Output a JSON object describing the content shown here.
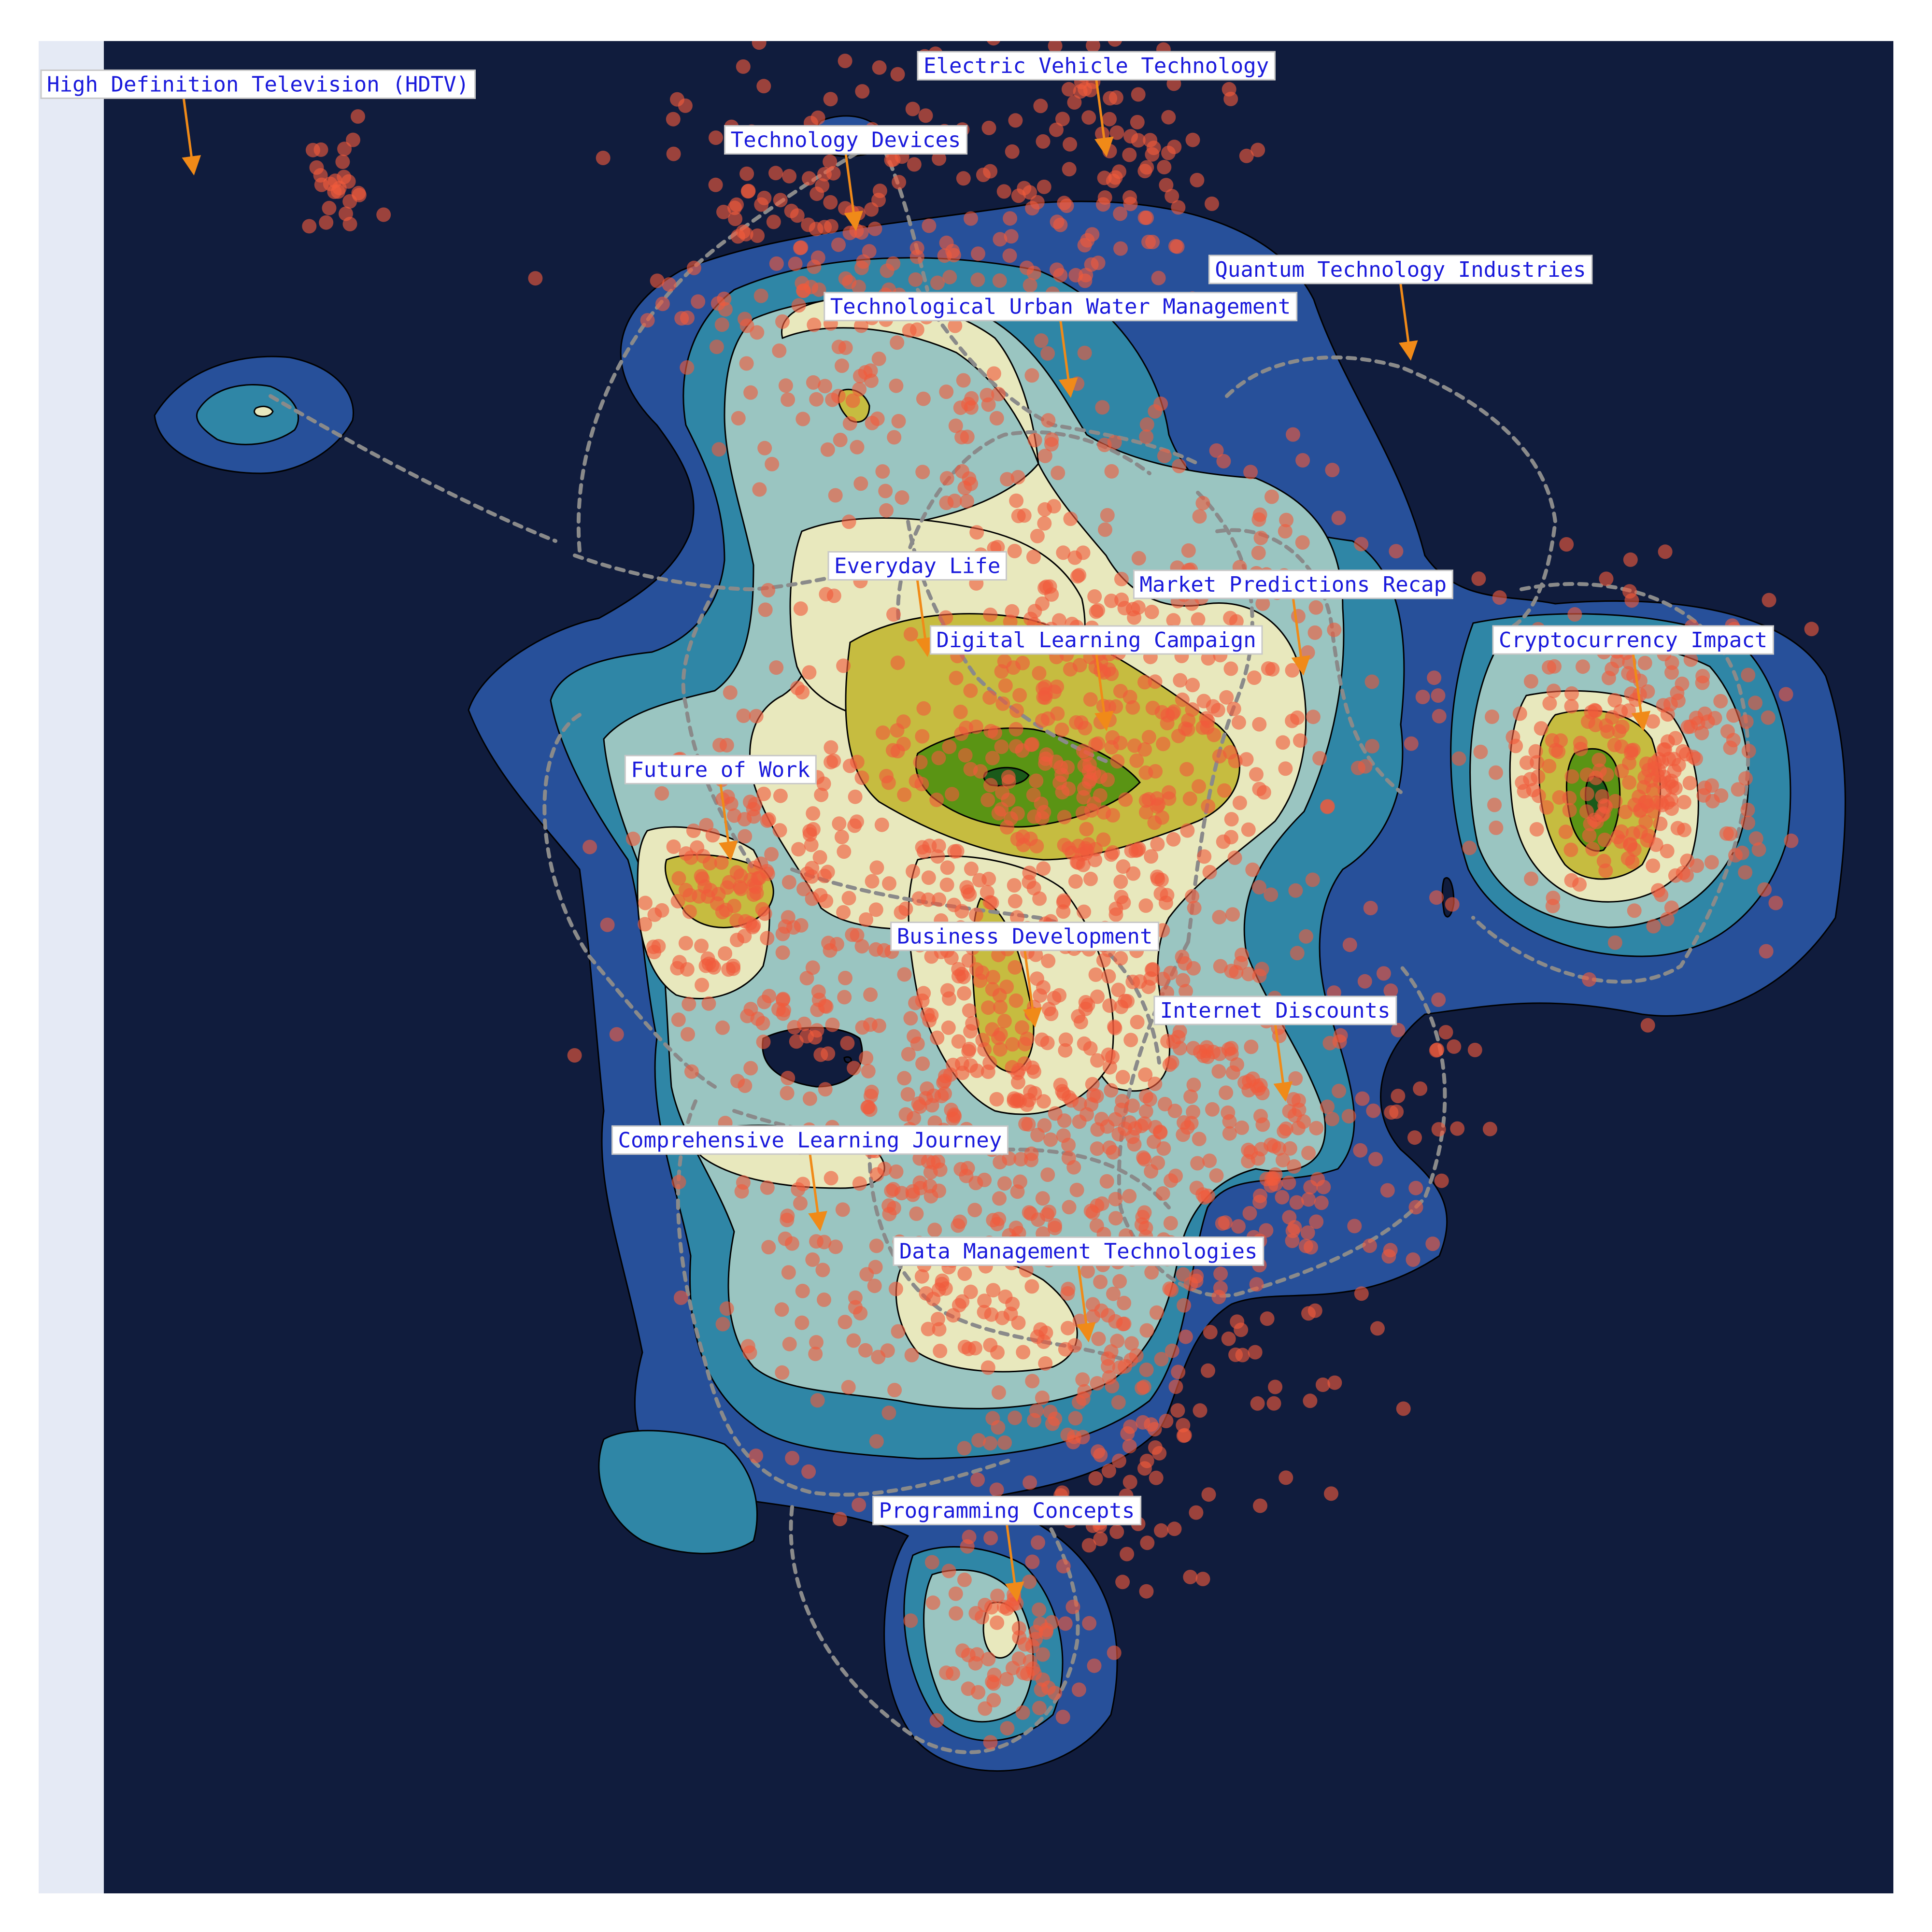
{
  "chart_data": {
    "type": "scatter",
    "subtype": "density-contour topic map",
    "title": "",
    "xlabel": "",
    "ylabel": "",
    "grid": false,
    "legend": "none",
    "colors": {
      "paper": "#ffffff",
      "plot_background": "#101c3d",
      "left_strip": "#e5eaf5",
      "contour_levels": [
        "#27509a",
        "#2f86a6",
        "#9ac5c1",
        "#e8e8bd",
        "#c6bc40",
        "#5a9414",
        "#1a5a1a"
      ],
      "points": "#f05a3c",
      "arrows": "#f08a18",
      "paths": "#8a8a8a",
      "label_text": "#1a1adc",
      "label_box": "#ffffff"
    },
    "annotations": [
      {
        "text": "High Definition Television (HDTV)",
        "x": 0.5,
        "y": 9.3
      },
      {
        "text": "Electric Vehicle Technology",
        "x": 5.6,
        "y": 9.4
      },
      {
        "text": "Technology Devices",
        "x": 4.2,
        "y": 9.0
      },
      {
        "text": "Quantum Technology Industries",
        "x": 7.3,
        "y": 8.3
      },
      {
        "text": "Technological Urban Water Management",
        "x": 5.4,
        "y": 8.1
      },
      {
        "text": "Everyday Life",
        "x": 4.6,
        "y": 6.7
      },
      {
        "text": "Market Predictions Recap",
        "x": 6.7,
        "y": 6.6
      },
      {
        "text": "Digital Learning Campaign",
        "x": 5.6,
        "y": 6.3
      },
      {
        "text": "Cryptocurrency Impact",
        "x": 8.6,
        "y": 6.3
      },
      {
        "text": "Future of Work",
        "x": 3.5,
        "y": 5.6
      },
      {
        "text": "Business Development",
        "x": 5.2,
        "y": 4.7
      },
      {
        "text": "Internet Discounts",
        "x": 6.6,
        "y": 4.3
      },
      {
        "text": "Comprehensive Learning Journey",
        "x": 4.0,
        "y": 3.6
      },
      {
        "text": "Data Management Technologies",
        "x": 5.5,
        "y": 3.0
      },
      {
        "text": "Programming Concepts",
        "x": 5.1,
        "y": 1.6
      }
    ],
    "clusters": [
      {
        "x": 1.3,
        "y": 9.2
      },
      {
        "x": 4.2,
        "y": 8.8
      },
      {
        "x": 5.6,
        "y": 9.3
      },
      {
        "x": 5.5,
        "y": 6.3
      },
      {
        "x": 8.6,
        "y": 6.1
      },
      {
        "x": 3.6,
        "y": 5.4
      },
      {
        "x": 5.3,
        "y": 4.5
      },
      {
        "x": 4.3,
        "y": 3.8
      },
      {
        "x": 5.5,
        "y": 2.8
      },
      {
        "x": 5.0,
        "y": 1.3
      },
      {
        "x": 6.6,
        "y": 4.0
      }
    ]
  }
}
